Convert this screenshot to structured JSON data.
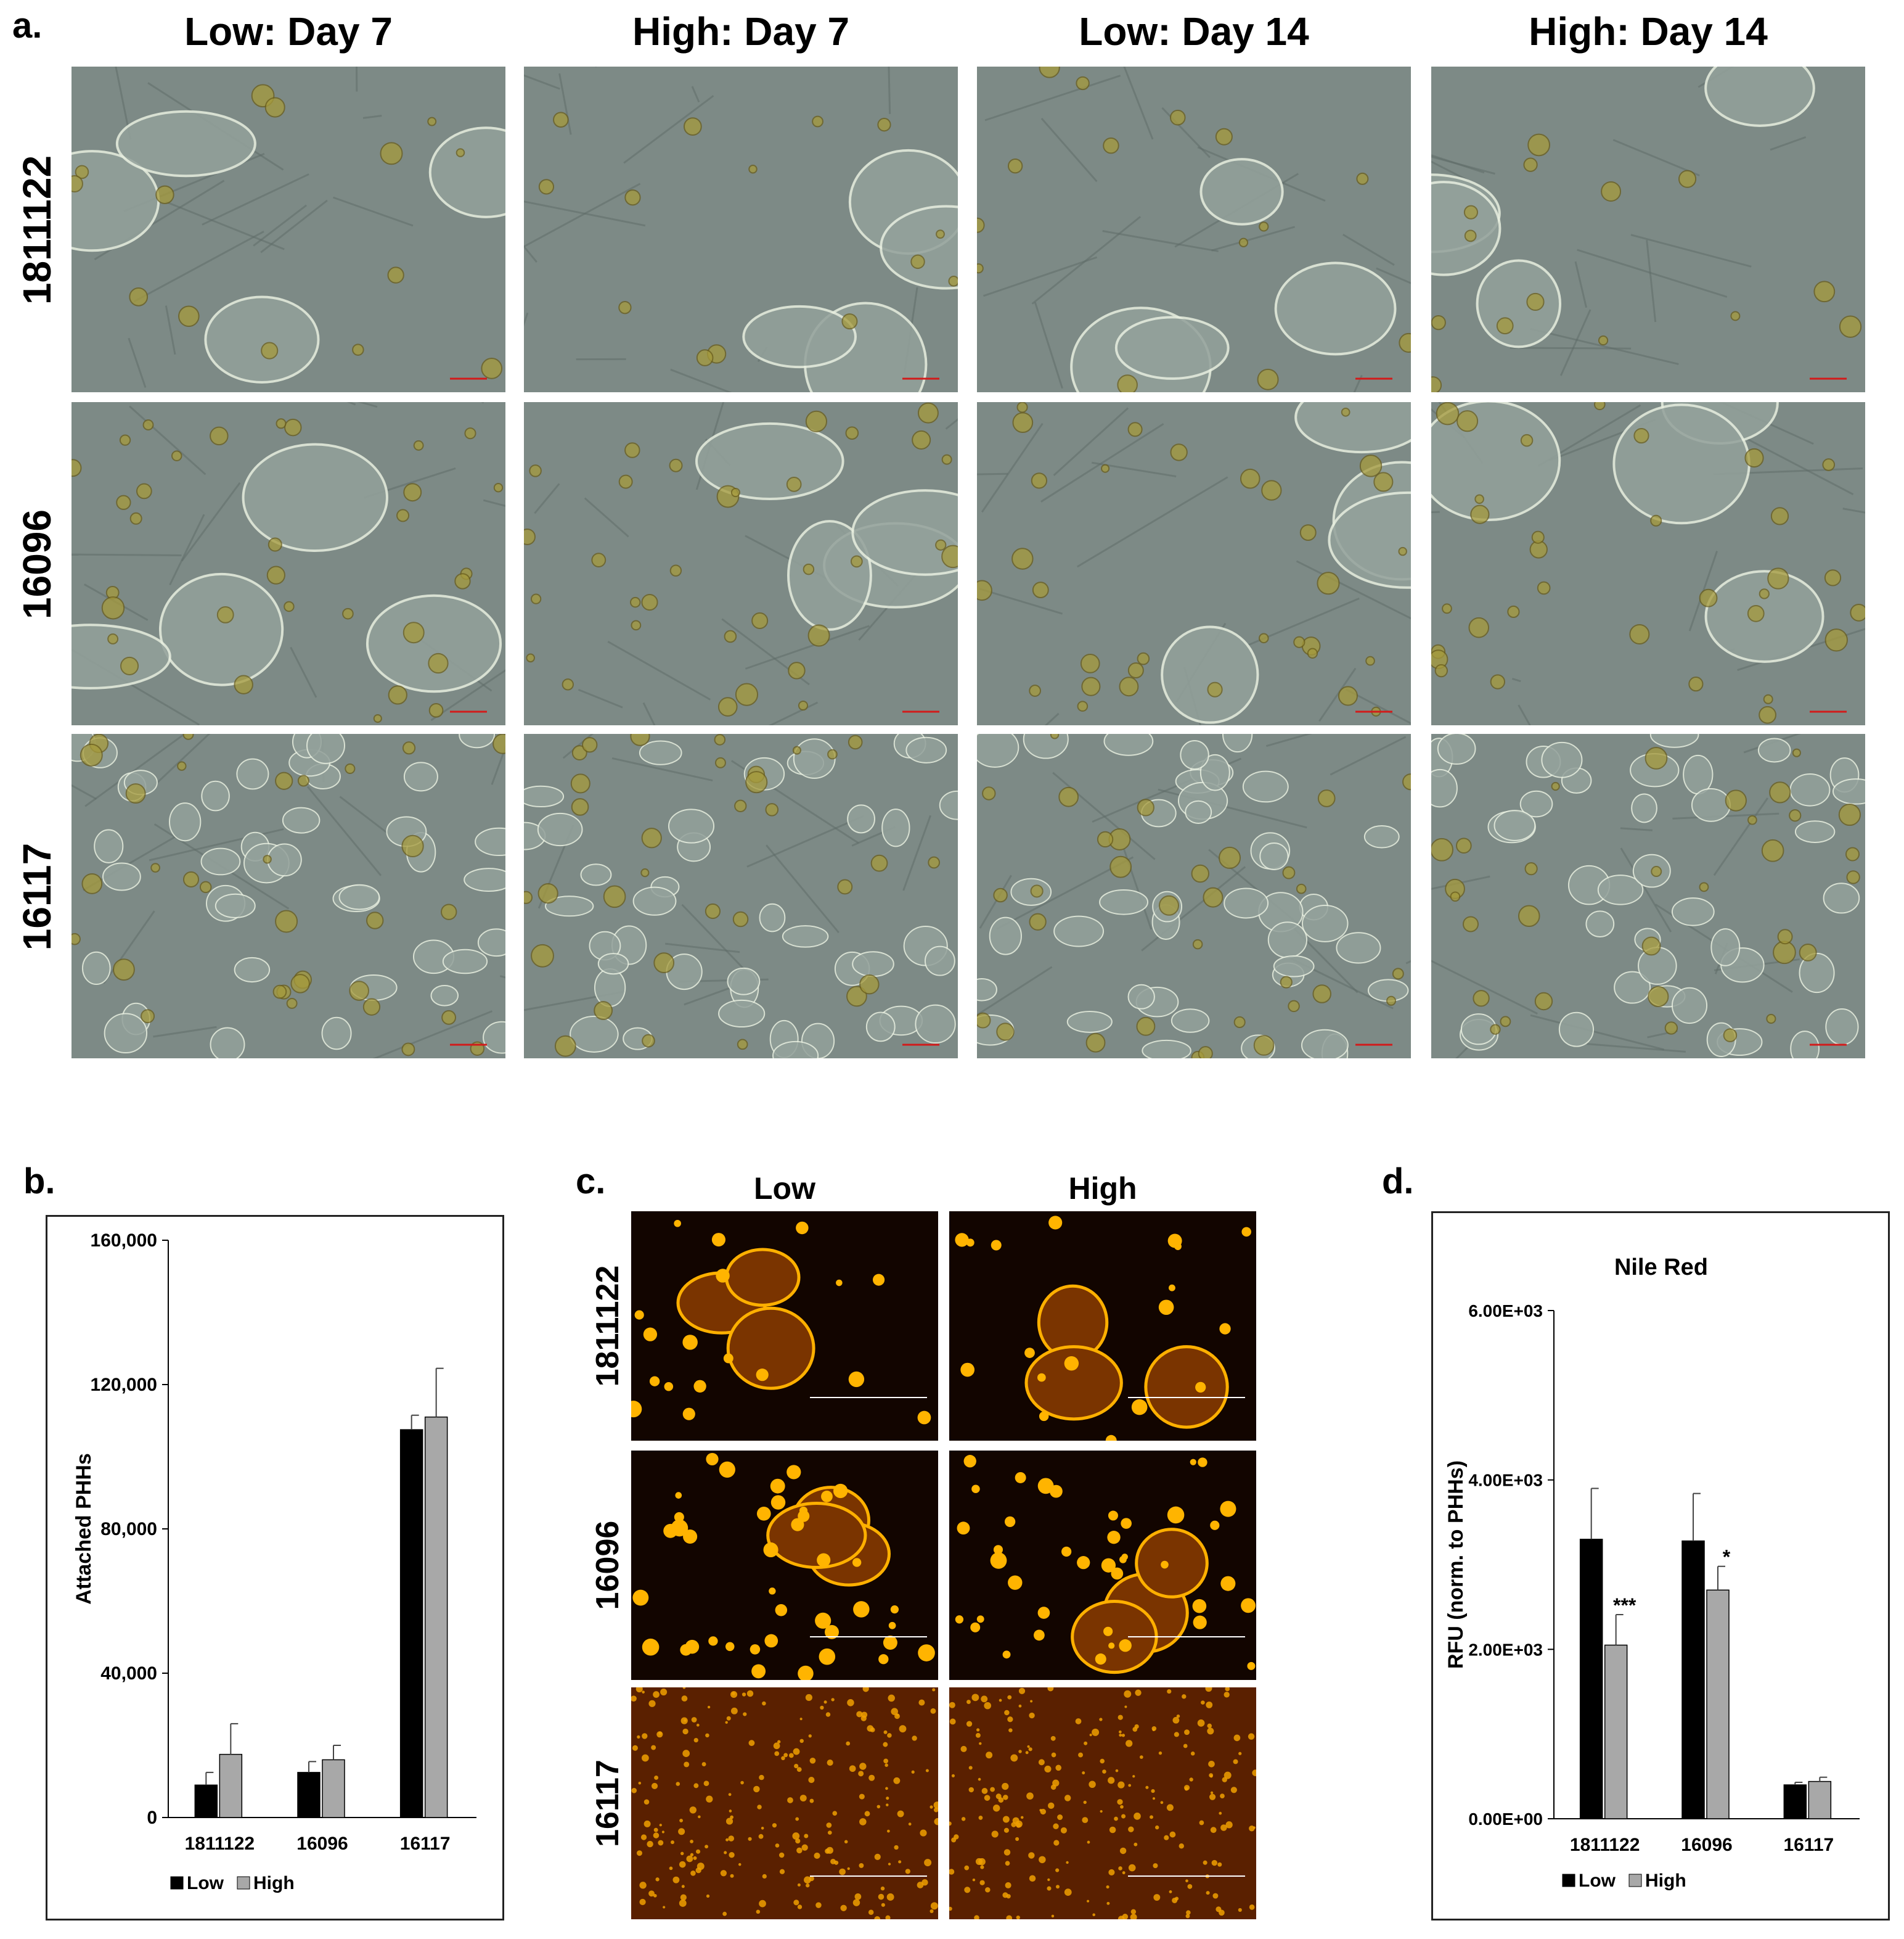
{
  "panel_a": {
    "letter": "a.",
    "columns": [
      "Low: Day 7",
      "High: Day 7",
      "Low: Day 14",
      "High: Day 14"
    ],
    "rows": [
      "1811122",
      "16096",
      "16117"
    ]
  },
  "panel_c": {
    "letter": "c.",
    "columns": [
      "Low",
      "High"
    ],
    "rows": [
      "1811122",
      "16096",
      "16117"
    ]
  },
  "colors": {
    "low": "#000000",
    "high": "#a8a8a8",
    "brightfield": "#7d8a86",
    "fluorescence": "#120500",
    "lipid": "#f0a000"
  },
  "chart_data": [
    {
      "panel": "b.",
      "type": "bar",
      "title": "",
      "xlabel": "",
      "ylabel": "Attached PHHs",
      "categories": [
        "1811122",
        "16096",
        "16117"
      ],
      "series": [
        {
          "name": "Low",
          "values": [
            9000,
            12500,
            107500
          ],
          "errors": [
            3500,
            3000,
            4000
          ]
        },
        {
          "name": "High",
          "values": [
            17500,
            16000,
            111000
          ],
          "errors": [
            8500,
            4000,
            13500
          ]
        }
      ],
      "yticks": [
        "0",
        "40,000",
        "80,000",
        "120,000",
        "160,000"
      ],
      "ylim": [
        0,
        160000
      ],
      "legend": "bottom"
    },
    {
      "panel": "d.",
      "type": "bar",
      "title": "Nile Red",
      "xlabel": "",
      "ylabel": "RFU (norm. to PHHs)",
      "categories": [
        "1811122",
        "16096",
        "16117"
      ],
      "series": [
        {
          "name": "Low",
          "values": [
            3300,
            3280,
            400
          ],
          "errors": [
            600,
            560,
            30
          ]
        },
        {
          "name": "High",
          "values": [
            2050,
            2700,
            440
          ],
          "errors": [
            360,
            280,
            50
          ]
        }
      ],
      "annotations": [
        {
          "category": "1811122",
          "series": "High",
          "text": "***"
        },
        {
          "category": "16096",
          "series": "High",
          "text": "*"
        }
      ],
      "yticks": [
        "0.00E+00",
        "2.00E+03",
        "4.00E+03",
        "6.00E+03"
      ],
      "ylim": [
        0,
        6000
      ],
      "legend": "bottom"
    }
  ]
}
